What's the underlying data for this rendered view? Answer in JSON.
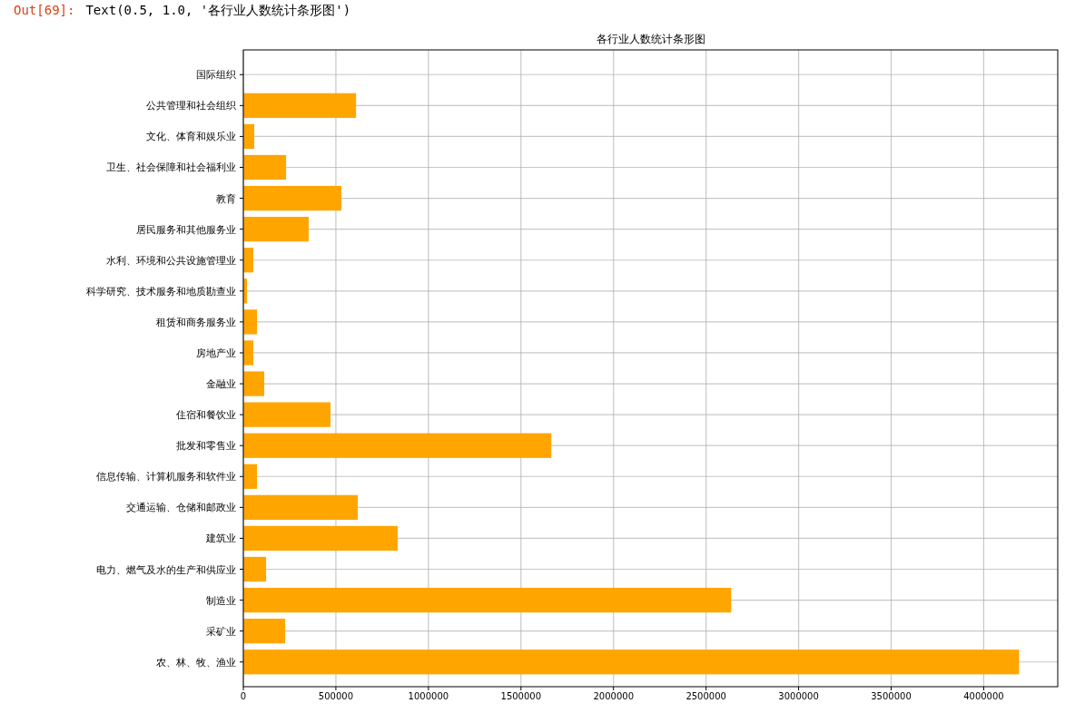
{
  "chart_data": {
    "type": "bar",
    "orientation": "horizontal",
    "title": "各行业人数统计条形图",
    "categories": [
      "国际组织",
      "公共管理和社会组织",
      "文化、体育和娱乐业",
      "卫生、社会保障和社会福利业",
      "教育",
      "居民服务和其他服务业",
      "水利、环境和公共设施管理业",
      "科学研究、技术服务和地质勘查业",
      "租赁和商务服务业",
      "房地产业",
      "金融业",
      "住宿和餐饮业",
      "批发和零售业",
      "信息传输、计算机服务和软件业",
      "交通运输、仓储和邮政业",
      "建筑业",
      "电力、燃气及水的生产和供应业",
      "制造业",
      "采矿业",
      "农、林、牧、渔业"
    ],
    "values": [
      0,
      609000,
      59000,
      231000,
      530000,
      353000,
      54000,
      20000,
      74000,
      54000,
      113000,
      471000,
      1664000,
      74000,
      618000,
      834000,
      123000,
      2636000,
      226000,
      4191000
    ],
    "color": "#ffa500",
    "xlim": [
      0,
      4400000
    ],
    "xticks": [
      0,
      500000,
      1000000,
      1500000,
      2000000,
      2500000,
      3000000,
      3500000,
      4000000
    ],
    "grid": true,
    "annotations": [
      "Out[69]:",
      "Text(0.5, 1.0, '各行业人数统计条形图')"
    ]
  }
}
